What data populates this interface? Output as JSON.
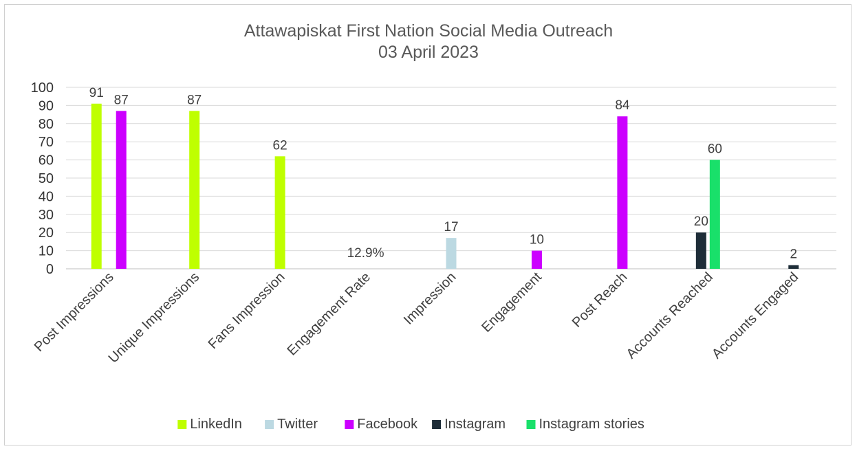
{
  "chart_data": {
    "type": "bar",
    "title": "Attawapiskat First Nation Social Media Outreach",
    "subtitle": "03 April 2023",
    "xlabel": "",
    "ylabel": "",
    "ylim": [
      0,
      100
    ],
    "yticks": [
      "0",
      "10",
      "20",
      "30",
      "40",
      "50",
      "60",
      "70",
      "80",
      "90",
      "100"
    ],
    "grid": true,
    "legend_position": "bottom",
    "categories": [
      "Post Impressions",
      "Unique Impressions",
      "Fans Impression",
      "Engagement Rate",
      "Impression",
      "Engagement",
      "Post Reach",
      "Accounts Reached",
      "Accounts Engaged"
    ],
    "series": [
      {
        "name": "LinkedIn",
        "color": "#bfff00",
        "values": [
          91,
          87,
          62,
          null,
          null,
          null,
          null,
          null,
          null
        ],
        "labels": [
          "91",
          "87",
          "62",
          "",
          "",
          "",
          "",
          "",
          ""
        ]
      },
      {
        "name": "Twitter",
        "color": "#bcd9e2",
        "values": [
          null,
          null,
          null,
          null,
          17,
          null,
          null,
          null,
          null
        ],
        "labels": [
          "",
          "",
          "",
          "",
          "17",
          "",
          "",
          "",
          ""
        ]
      },
      {
        "name": "Facebook",
        "color": "#cc00ff",
        "values": [
          87,
          null,
          null,
          null,
          null,
          10,
          84,
          null,
          null
        ],
        "labels": [
          "87",
          "",
          "",
          "",
          "",
          "10",
          "84",
          "",
          ""
        ]
      },
      {
        "name": "Instagram",
        "color": "#1e2d38",
        "values": [
          null,
          null,
          null,
          null,
          null,
          null,
          null,
          20,
          2
        ],
        "labels": [
          "",
          "",
          "",
          "",
          "",
          "",
          "",
          "20",
          "2"
        ]
      },
      {
        "name": "Instagram stories",
        "color": "#19e06a",
        "values": [
          null,
          null,
          null,
          null,
          null,
          null,
          null,
          60,
          null
        ],
        "labels": [
          "",
          "",
          "",
          "",
          "",
          "",
          "",
          "60",
          ""
        ]
      }
    ],
    "annotations": [
      {
        "category": "Engagement Rate",
        "text": "12.9%"
      }
    ]
  }
}
